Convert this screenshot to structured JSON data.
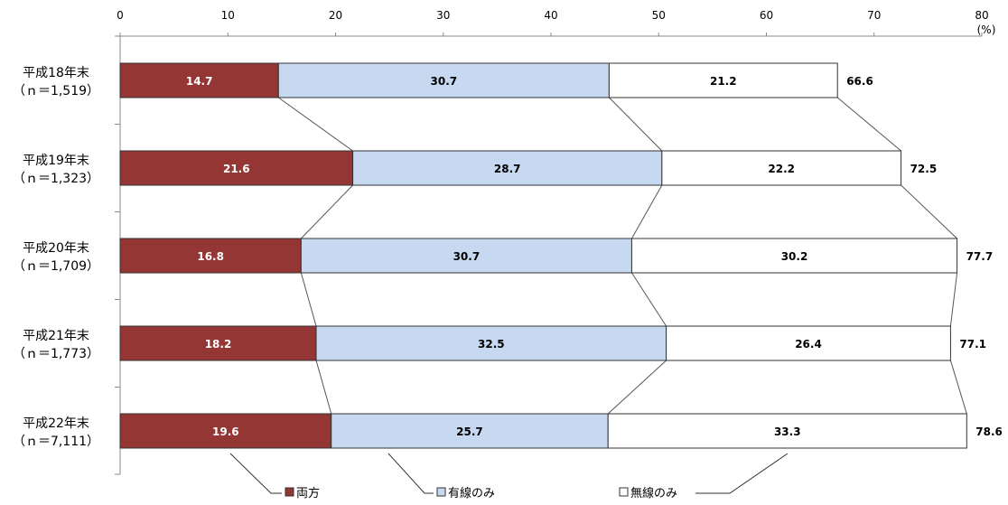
{
  "chart_data": {
    "type": "bar",
    "orientation": "horizontal",
    "stacked": true,
    "unit_label": "(%)",
    "xlim": [
      0,
      80
    ],
    "x_ticks": [
      0,
      10,
      20,
      30,
      40,
      50,
      60,
      70,
      80
    ],
    "categories": [
      {
        "label": "平成18年末",
        "n": "（ｎ＝1,519）"
      },
      {
        "label": "平成19年末",
        "n": "（ｎ＝1,323）"
      },
      {
        "label": "平成20年末",
        "n": "（ｎ＝1,709）"
      },
      {
        "label": "平成21年末",
        "n": "（ｎ＝1,773）"
      },
      {
        "label": "平成22年末",
        "n": "（ｎ＝7,111）"
      }
    ],
    "series": [
      {
        "name": "両方",
        "color": "#943634",
        "label_color": "#ffffff",
        "values": [
          14.7,
          21.6,
          16.8,
          18.2,
          19.6
        ]
      },
      {
        "name": "有線のみ",
        "color": "#c6d9f1",
        "label_color": "#000000",
        "values": [
          30.7,
          28.7,
          30.7,
          32.5,
          25.7
        ]
      },
      {
        "name": "無線のみ",
        "color": "#ffffff",
        "label_color": "#000000",
        "values": [
          21.2,
          22.2,
          30.2,
          26.4,
          33.3
        ]
      }
    ],
    "totals": [
      66.6,
      72.5,
      77.7,
      77.1,
      78.6
    ],
    "legend_position": "bottom",
    "connector_lines": true
  }
}
